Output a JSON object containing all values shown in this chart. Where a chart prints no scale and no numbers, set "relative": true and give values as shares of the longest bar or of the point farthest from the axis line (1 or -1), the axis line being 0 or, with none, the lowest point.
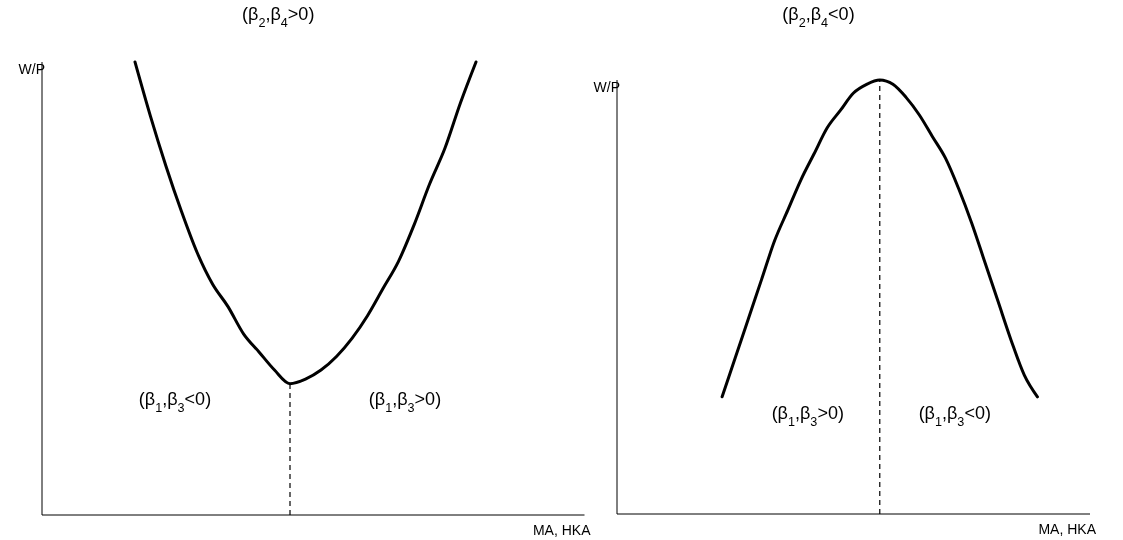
{
  "chart_data": [
    {
      "type": "line",
      "title": "(β$_{2}$,β$_{4}$>0)",
      "xlabel": "MA, HKA",
      "ylabel": "W/P",
      "relative": true,
      "line_style": "solid",
      "categories": [
        null,
        null,
        null,
        null,
        null,
        null,
        null,
        null,
        null,
        null,
        null,
        null,
        null,
        null,
        null,
        null,
        null,
        null,
        null,
        null,
        null,
        null,
        null,
        null,
        null,
        null,
        null,
        null,
        null,
        null,
        null,
        null,
        null,
        null,
        null,
        null
      ],
      "series": [
        {
          "color": "#000000",
          "values": [
            null,
            null,
            null,
            null,
            null,
            null,
            1.0,
            0.88,
            0.77,
            0.67,
            0.58,
            0.51,
            0.46,
            0.4,
            0.36,
            0.32,
            0.29,
            0.3,
            0.32,
            0.35,
            0.39,
            0.44,
            0.5,
            0.56,
            0.64,
            0.73,
            0.81,
            0.91,
            1.0,
            null,
            null,
            null,
            null,
            null,
            null,
            null
          ]
        }
      ],
      "annotations": [
        "(β$_{1}$,β$_{3}$<0)",
        "(β$_{1}$,β$_{3}$>0)"
      ]
    },
    {
      "type": "line",
      "title": "(β$_{2}$,β$_{4}$<0)",
      "xlabel": "MA, HKA",
      "ylabel": "W/P",
      "relative": true,
      "line_style": "solid",
      "categories": [
        null,
        null,
        null,
        null,
        null,
        null,
        null,
        null,
        null,
        null,
        null,
        null,
        null,
        null,
        null,
        null,
        null,
        null,
        null,
        null,
        null,
        null,
        null,
        null,
        null,
        null,
        null,
        null,
        null,
        null,
        null,
        null,
        null,
        null,
        null,
        null,
        null
      ],
      "series": [
        {
          "color": "#000000",
          "values": [
            null,
            null,
            null,
            null,
            null,
            null,
            null,
            null,
            0.27,
            0.36,
            0.45,
            0.54,
            0.63,
            0.7,
            0.77,
            0.83,
            0.89,
            0.93,
            0.97,
            0.99,
            1.0,
            0.99,
            0.96,
            0.92,
            0.87,
            0.82,
            0.75,
            0.67,
            0.58,
            0.49,
            0.4,
            0.32,
            0.27,
            null,
            null,
            null,
            null
          ]
        }
      ],
      "annotations": [
        "(β$_{1}$,β$_{3}$>0)",
        "(β$_{1}$,β$_{3}$<0)"
      ]
    }
  ]
}
